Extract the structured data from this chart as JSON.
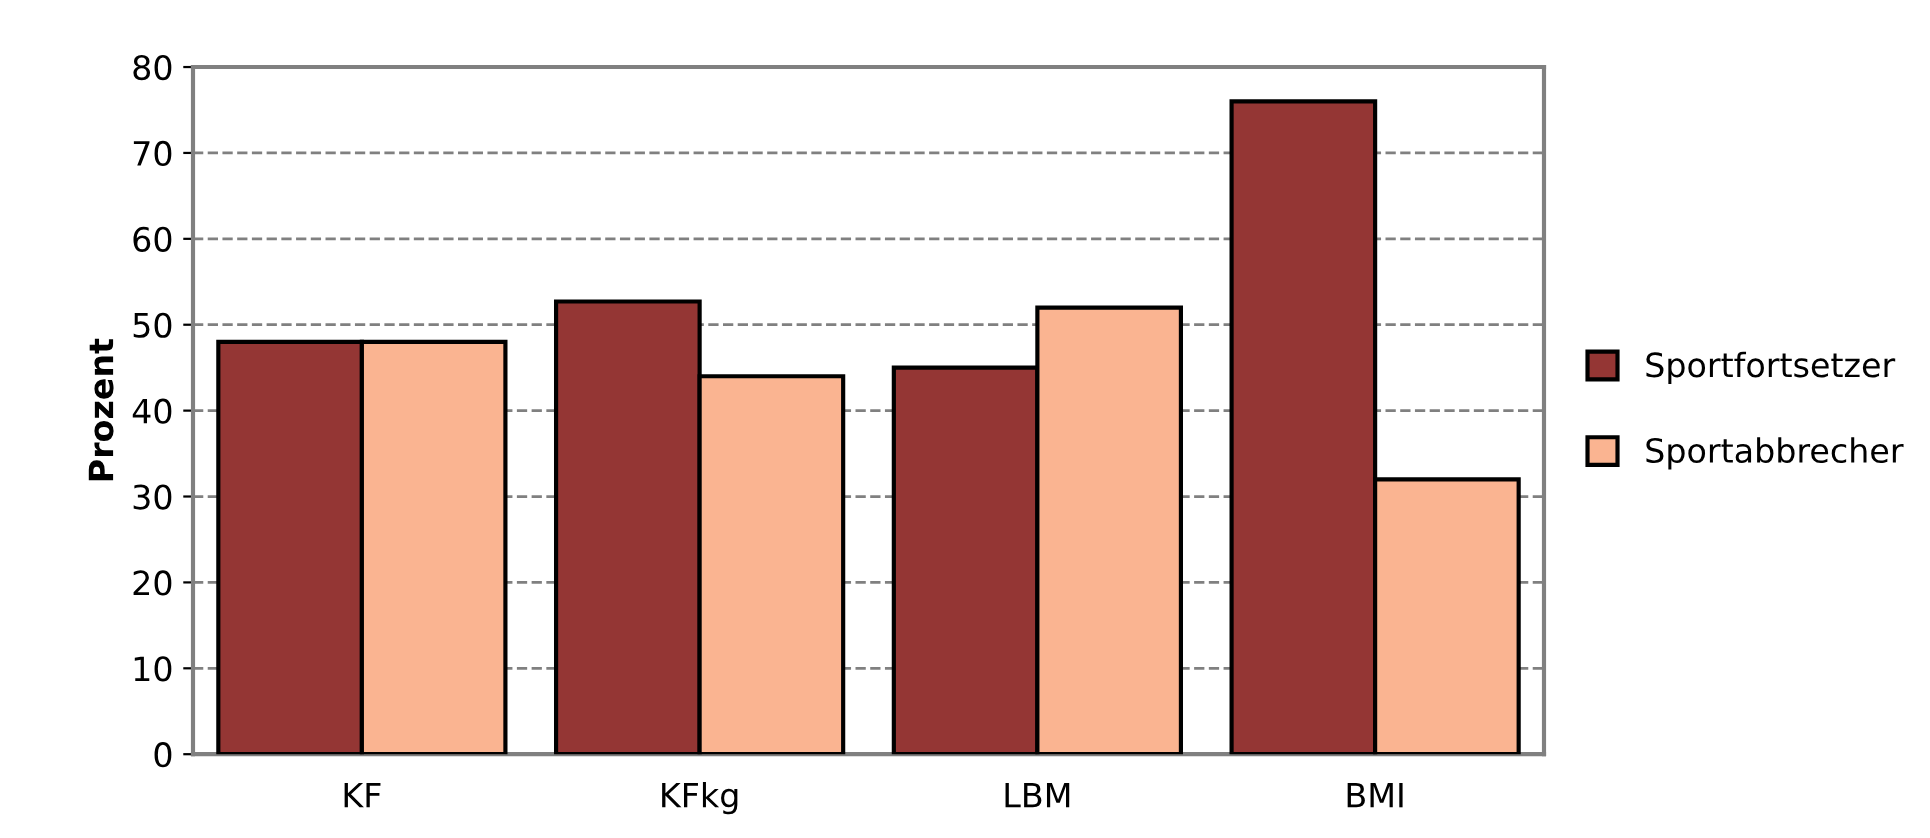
{
  "chart_data": {
    "type": "bar",
    "ylabel": "Prozent",
    "categories": [
      "KF",
      "KFkg",
      "LBM",
      "BMI"
    ],
    "series": [
      {
        "name": "Sportfortsetzer",
        "color": "#943634",
        "values": [
          48,
          52.7,
          45,
          76
        ]
      },
      {
        "name": "Sportabbrecher",
        "color": "#fab491",
        "values": [
          48,
          44,
          52,
          32
        ]
      }
    ],
    "ylim": [
      0,
      80
    ],
    "yticks": [
      0,
      10,
      20,
      30,
      40,
      50,
      60,
      70,
      80
    ],
    "grid": "y",
    "legend": "right"
  }
}
